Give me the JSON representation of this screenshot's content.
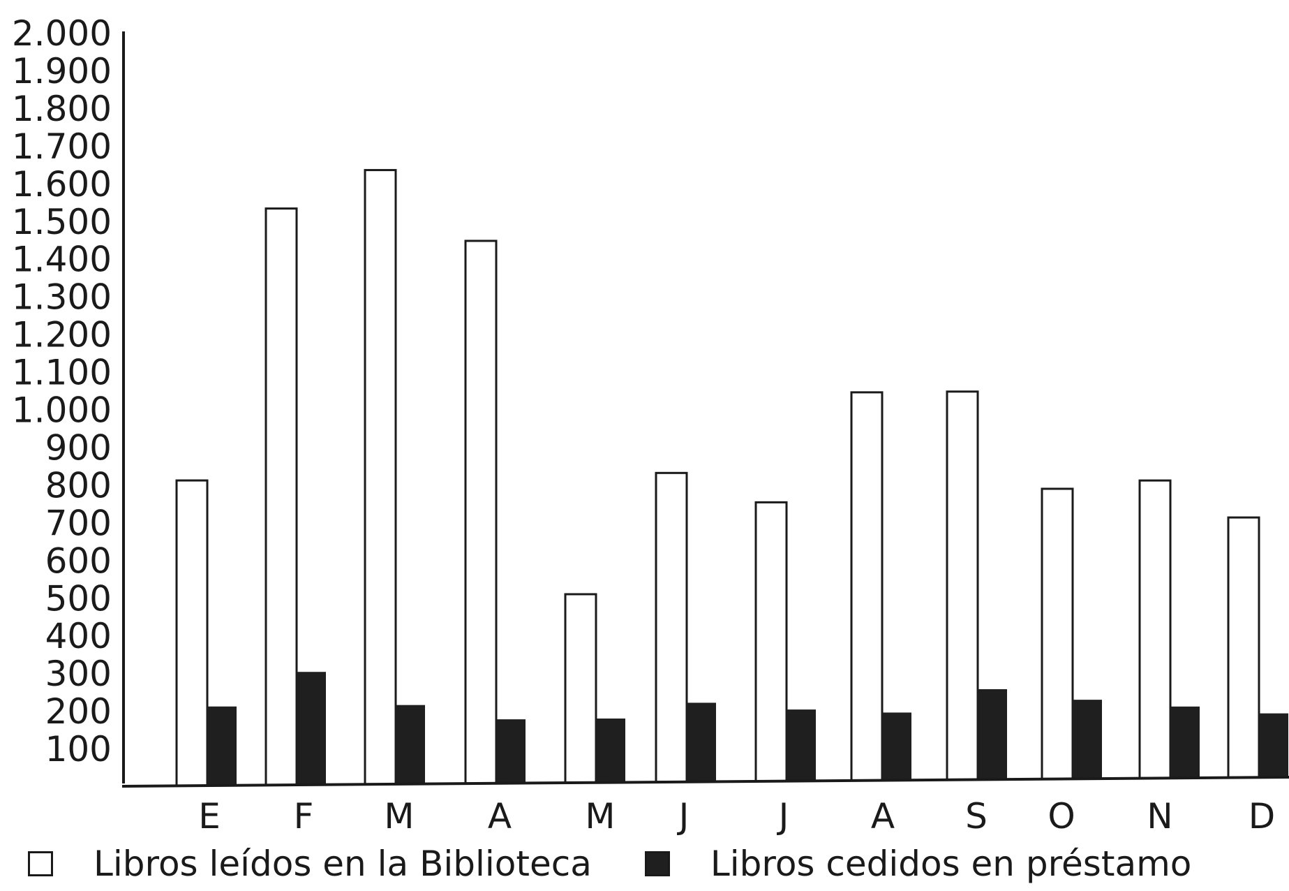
{
  "chart_data": {
    "type": "bar",
    "title": "",
    "xlabel": "",
    "ylabel": "",
    "ylim": [
      0,
      2000
    ],
    "yticks": [
      "100",
      "200",
      "300",
      "400",
      "500",
      "600",
      "700",
      "800",
      "900",
      "1.000",
      "1.100",
      "1.200",
      "1.300",
      "1.400",
      "1.500",
      "1.600",
      "1.700",
      "1.800",
      "1.900",
      "2.000"
    ],
    "categories": [
      "E",
      "F",
      "M",
      "A",
      "M",
      "J",
      "J",
      "A",
      "S",
      "O",
      "N",
      "D"
    ],
    "series": [
      {
        "name": "Libros leídos en la Biblioteca",
        "values": [
          810,
          1530,
          1630,
          1440,
          500,
          820,
          740,
          1030,
          1030,
          770,
          790,
          690
        ],
        "color": "#ffffff"
      },
      {
        "name": "Libros cedidos en préstamo",
        "values": [
          210,
          300,
          210,
          170,
          170,
          210,
          190,
          180,
          240,
          210,
          190,
          170
        ],
        "color": "#1f1f1f"
      }
    ],
    "grid": false,
    "legend_position": "bottom"
  },
  "legend": {
    "item1": "Libros leídos en la Biblioteca",
    "item2": "Libros cedidos en préstamo"
  }
}
